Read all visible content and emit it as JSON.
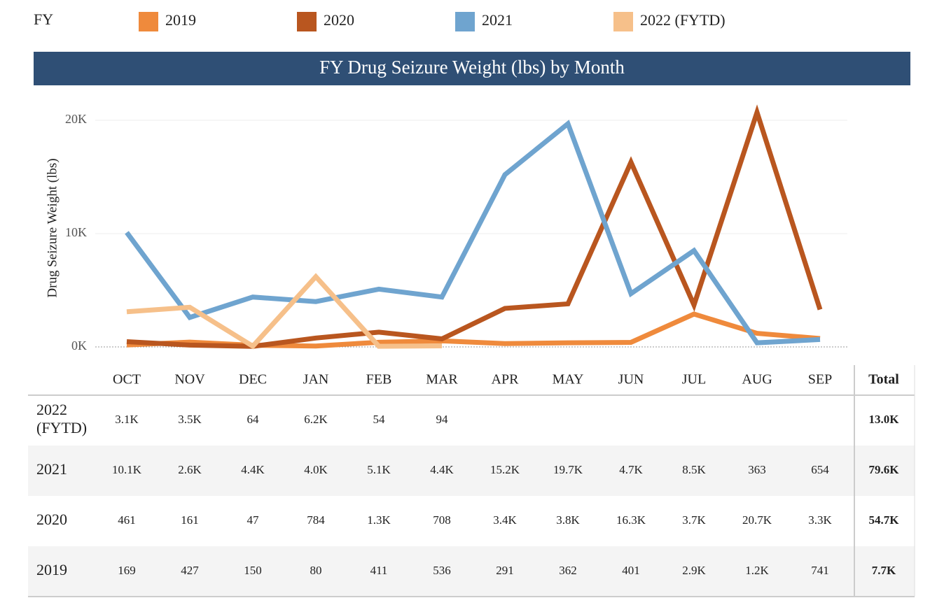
{
  "chart_data": {
    "type": "line",
    "title": "FY Drug Seizure Weight (lbs) by Month",
    "legend_title": "FY",
    "y_label": "Drug Seizure Weight (lbs)",
    "total_label": "Total",
    "categories": [
      "OCT",
      "NOV",
      "DEC",
      "JAN",
      "FEB",
      "MAR",
      "APR",
      "MAY",
      "JUN",
      "JUL",
      "AUG",
      "SEP"
    ],
    "ylim": [
      0,
      22000
    ],
    "yticks": [
      {
        "value": 0,
        "label": "0K"
      },
      {
        "value": 10000,
        "label": "10K"
      },
      {
        "value": 20000,
        "label": "20K"
      }
    ],
    "grid": true,
    "series": [
      {
        "name": "2019",
        "color": "#ef8a3c",
        "values": [
          169,
          427,
          150,
          80,
          411,
          536,
          291,
          362,
          401,
          2900,
          1200,
          741
        ],
        "value_labels": [
          "169",
          "427",
          "150",
          "80",
          "411",
          "536",
          "291",
          "362",
          "401",
          "2.9K",
          "1.2K",
          "741"
        ],
        "total": "7.7K"
      },
      {
        "name": "2020",
        "color": "#b9561f",
        "values": [
          461,
          161,
          47,
          784,
          1300,
          708,
          3400,
          3800,
          16300,
          3700,
          20700,
          3300
        ],
        "value_labels": [
          "461",
          "161",
          "47",
          "784",
          "1.3K",
          "708",
          "3.4K",
          "3.8K",
          "16.3K",
          "3.7K",
          "20.7K",
          "3.3K"
        ],
        "total": "54.7K"
      },
      {
        "name": "2021",
        "color": "#6fa4cf",
        "values": [
          10100,
          2600,
          4400,
          4000,
          5100,
          4400,
          15200,
          19700,
          4700,
          8500,
          363,
          654
        ],
        "value_labels": [
          "10.1K",
          "2.6K",
          "4.4K",
          "4.0K",
          "5.1K",
          "4.4K",
          "15.2K",
          "19.7K",
          "4.7K",
          "8.5K",
          "363",
          "654"
        ],
        "total": "79.6K"
      },
      {
        "name": "2022 (FYTD)",
        "color": "#f6c08a",
        "values": [
          3100,
          3500,
          64,
          6200,
          54,
          94,
          null,
          null,
          null,
          null,
          null,
          null
        ],
        "value_labels": [
          "3.1K",
          "3.5K",
          "64",
          "6.2K",
          "54",
          "94",
          null,
          null,
          null,
          null,
          null,
          null
        ],
        "total": "13.0K"
      }
    ]
  }
}
